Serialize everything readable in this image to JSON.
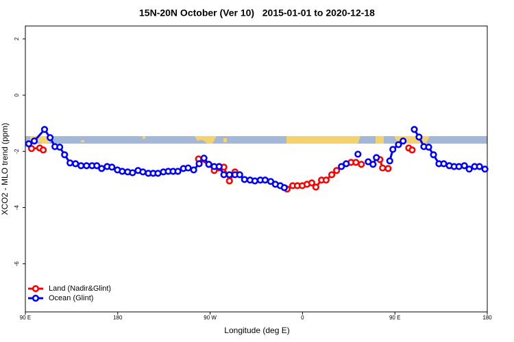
{
  "chart_data": {
    "type": "line",
    "title": "15N-20N October (Ver 10)   2015-01-01 to 2020-12-18",
    "x_label": "Longitude (deg E)",
    "y_label": "XCO2 - MLO trend (ppm)",
    "xlim": [
      90,
      540
    ],
    "xticks": [
      {
        "value": 90,
        "label": "90 E"
      },
      {
        "value": 180,
        "label": "180"
      },
      {
        "value": 270,
        "label": "90 W"
      },
      {
        "value": 360,
        "label": "0"
      },
      {
        "value": 450,
        "label": "90 E"
      },
      {
        "value": 540,
        "label": "180"
      }
    ],
    "ylim": [
      -7.71,
      2.46
    ],
    "yticks": [
      2,
      0,
      -2,
      -4,
      -6
    ],
    "legend": "bottom-left",
    "series": [
      {
        "name": "Land (Nadir&Glint)",
        "color": "#ff0000",
        "x": [
          96,
          104,
          107.4,
          110,
          258.7,
          268.7,
          274,
          278.8,
          283.4,
          288.8,
          294.2,
          300,
          345,
          350.4,
          355,
          359.7,
          364.4,
          369,
          373,
          378.5,
          383,
          388.5,
          393.2,
          400,
          407.3,
          412,
          417.3,
          425,
          435.4,
          438,
          443.4,
          455,
          463.5,
          466.8
        ],
        "values": [
          -1.9,
          -1.88,
          -1.95,
          null,
          -2.27,
          -2.46,
          -2.68,
          -2.59,
          -2.56,
          -3.05,
          -2.73,
          null,
          -3.34,
          -3.22,
          -3.22,
          -3.22,
          -3.17,
          -3.12,
          -3.27,
          -3.02,
          -3.02,
          -2.83,
          -2.68,
          null,
          -2.39,
          -2.39,
          -2.46,
          null,
          -2.29,
          -2.59,
          -2.61,
          null,
          -1.88,
          -1.95
        ]
      },
      {
        "name": "Ocean (Glint)",
        "color": "#0000ff",
        "x": [
          93.3,
          98.7,
          108.7,
          114.1,
          118.8,
          123.5,
          128.2,
          133.5,
          138.9,
          144.2,
          149.6,
          155,
          159.6,
          164.3,
          169.7,
          174.3,
          179.7,
          184.4,
          189.7,
          194.4,
          199.8,
          204.5,
          209.8,
          214.5,
          219.2,
          224.5,
          229.2,
          233.9,
          238.6,
          244,
          248.6,
          254,
          259.3,
          264,
          268.7,
          274,
          278.8,
          283.4,
          288.8,
          294.2,
          298.8,
          303.5,
          308.9,
          313.6,
          318.9,
          323.6,
          329,
          333.6,
          338.3,
          342.3,
          370,
          397.9,
          402.6,
          408,
          414,
          420,
          424,
          428.7,
          432,
          440,
          445,
          448,
          453.5,
          458,
          463,
          468.9,
          473.5,
          478.2,
          482.9,
          487.6,
          492.9,
          497.6,
          503,
          507.7,
          512.4,
          517.7,
          522.4,
          527.7,
          532.4,
          537.7
        ],
        "values": [
          -1.73,
          -1.63,
          -1.22,
          -1.51,
          -1.83,
          -1.85,
          -2.12,
          -2.41,
          -2.44,
          -2.51,
          -2.51,
          -2.51,
          -2.51,
          -2.61,
          -2.54,
          -2.56,
          -2.66,
          -2.71,
          -2.73,
          -2.76,
          -2.68,
          -2.73,
          -2.78,
          -2.78,
          -2.78,
          -2.73,
          -2.71,
          -2.71,
          -2.71,
          -2.61,
          -2.59,
          -2.66,
          -2.44,
          -2.24,
          -2.46,
          -2.54,
          -2.54,
          -2.83,
          -2.83,
          -2.83,
          -2.83,
          -3.0,
          -3.02,
          -3.05,
          -3.02,
          -3.02,
          -3.07,
          -3.17,
          -3.22,
          -3.29,
          null,
          -2.54,
          -2.44,
          null,
          -2.1,
          null,
          -2.37,
          -2.46,
          -2.22,
          null,
          -2.34,
          -1.93,
          -1.76,
          -1.63,
          null,
          -1.22,
          -1.49,
          -1.83,
          -1.85,
          -2.12,
          -2.44,
          -2.44,
          -2.51,
          -2.54,
          -2.54,
          -2.51,
          -2.63,
          -2.54,
          -2.54,
          -2.63
        ]
      }
    ]
  }
}
